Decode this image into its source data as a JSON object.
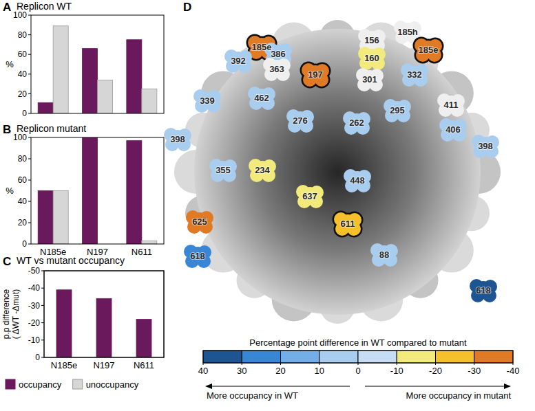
{
  "chart_data": [
    {
      "type": "bar",
      "panel": "A",
      "title": "Replicon WT",
      "categories": [
        "N185e",
        "N197",
        "N611"
      ],
      "series": [
        {
          "name": "occupancy",
          "color": "#6a1a5c",
          "values": [
            11,
            66,
            75
          ]
        },
        {
          "name": "unoccupancy",
          "color": "#d6d6d6",
          "values": [
            89,
            34,
            25
          ]
        }
      ],
      "ylim": [
        0,
        100
      ],
      "yticks": [
        0,
        20,
        40,
        60,
        80,
        100
      ],
      "y_label": "%",
      "tick_labels": "y",
      "legend": "bottom"
    },
    {
      "type": "bar",
      "panel": "B",
      "title": "Replicon mutant",
      "categories": [
        "N185e",
        "N197",
        "N611"
      ],
      "series": [
        {
          "name": "occupancy",
          "color": "#6a1a5c",
          "values": [
            50,
            100,
            97
          ]
        },
        {
          "name": "unoccupancy",
          "color": "#d6d6d6",
          "values": [
            50,
            0,
            3
          ]
        }
      ],
      "ylim": [
        0,
        100
      ],
      "yticks": [
        0,
        20,
        40,
        60,
        80,
        100
      ],
      "y_label": "%"
    },
    {
      "type": "bar",
      "panel": "C",
      "title": "WT vs mutant occupancy",
      "categories": [
        "N185e",
        "N197",
        "N611"
      ],
      "series": [
        {
          "name": "occupancy",
          "color": "#6a1a5c",
          "values": [
            -39,
            -34,
            -22
          ]
        }
      ],
      "ylim": [
        0,
        -50
      ],
      "yticks": [
        0,
        -10,
        -20,
        -30,
        -40,
        -50
      ],
      "y_label": [
        "p.p difference",
        "( ΔWT -Δmut)"
      ]
    }
  ],
  "structure": {
    "panel": "D",
    "sites": [
      {
        "label": "185e",
        "value": -39,
        "highlight": true
      },
      {
        "label": "185h",
        "value": null
      },
      {
        "label": "185e",
        "value": -39,
        "highlight": true
      },
      {
        "label": "156",
        "value": null
      },
      {
        "label": "160",
        "value": -15
      },
      {
        "label": "386",
        "value": 5
      },
      {
        "label": "392",
        "value": 5
      },
      {
        "label": "363",
        "value": null
      },
      {
        "label": "197",
        "value": -34,
        "highlight": true
      },
      {
        "label": "301",
        "value": null
      },
      {
        "label": "332",
        "value": 5
      },
      {
        "label": "411",
        "value": null
      },
      {
        "label": "462",
        "value": 5
      },
      {
        "label": "339",
        "value": 5
      },
      {
        "label": "295",
        "value": 5
      },
      {
        "label": "276",
        "value": 5
      },
      {
        "label": "262",
        "value": 5
      },
      {
        "label": "398",
        "value": 5
      },
      {
        "label": "406",
        "value": 5
      },
      {
        "label": "398",
        "value": 5
      },
      {
        "label": "234",
        "value": -15
      },
      {
        "label": "355",
        "value": 5
      },
      {
        "label": "448",
        "value": 5
      },
      {
        "label": "637",
        "value": -15
      },
      {
        "label": "611",
        "value": -22,
        "highlight": true
      },
      {
        "label": "625",
        "value": -35
      },
      {
        "label": "618",
        "value": 25
      },
      {
        "label": "88",
        "value": 5
      },
      {
        "label": "618",
        "value": 35
      }
    ],
    "colorbar": {
      "title": "Percentage point difference in WT compared to mutant",
      "range": [
        40,
        -40
      ],
      "ticks": [
        40,
        30,
        20,
        10,
        0,
        -10,
        -20,
        -30,
        -40
      ],
      "colors": [
        "#1c5591",
        "#3a86d6",
        "#74aee6",
        "#a9cdee",
        "#c6ddf3",
        "#f2ea7a",
        "#f5c02a",
        "#e07a25"
      ],
      "left_label": "More occupancy in WT",
      "right_label": "More occupancy in mutant"
    }
  }
}
